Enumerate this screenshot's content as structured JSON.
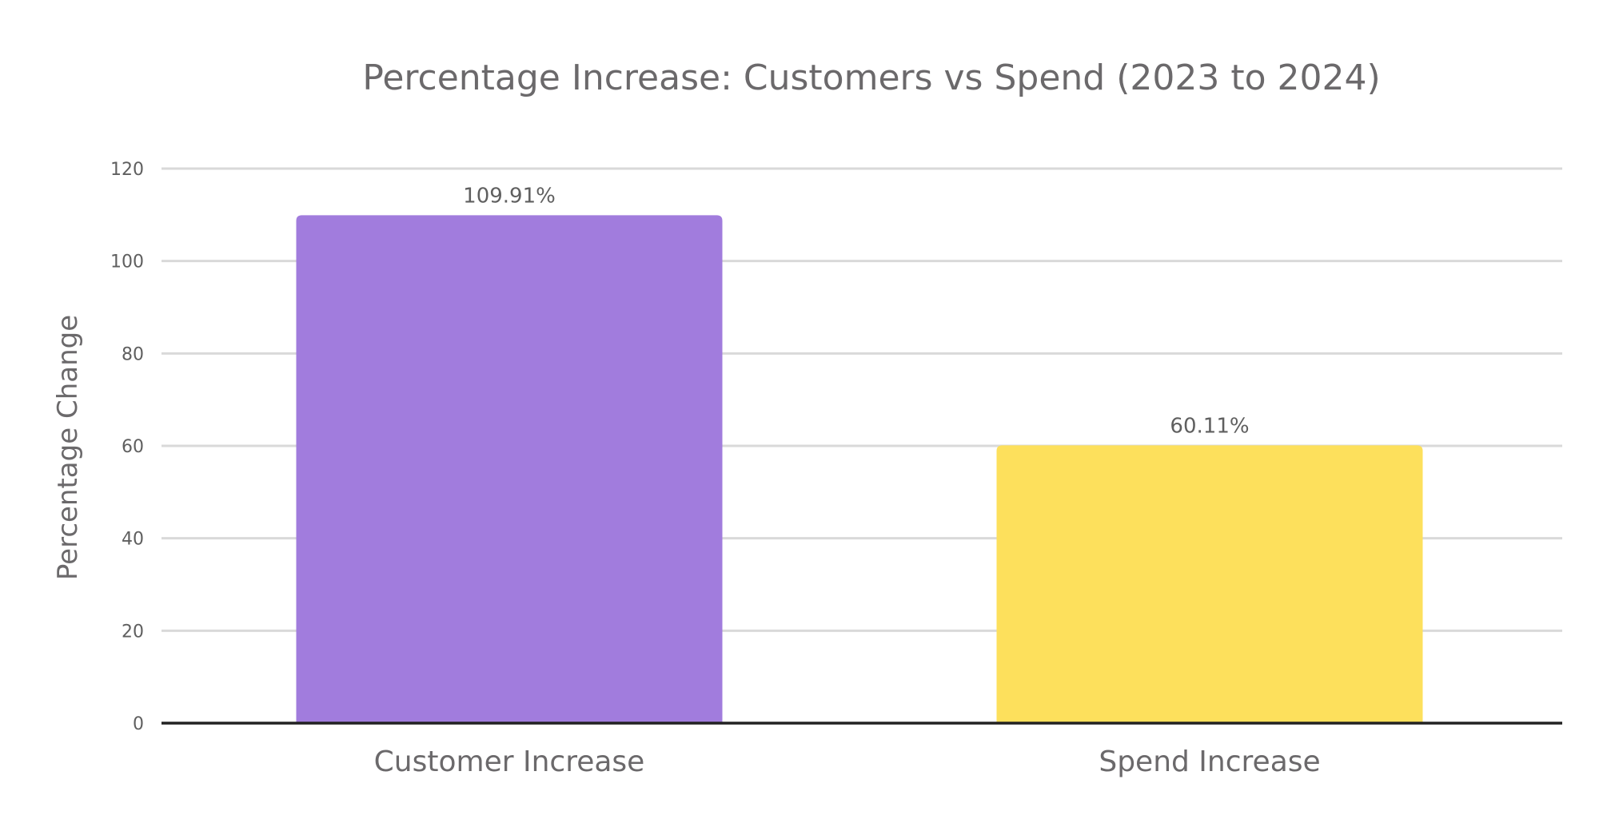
{
  "chart_data": {
    "type": "bar",
    "title": "Percentage Increase: Customers vs Spend (2023 to 2024)",
    "xlabel": "",
    "ylabel": "Percentage Change",
    "categories": [
      "Customer Increase",
      "Spend Increase"
    ],
    "values": [
      109.91,
      60.11
    ],
    "data_labels": [
      "109.91%",
      "60.11%"
    ],
    "colors": [
      "#a17cdd",
      "#fde05c"
    ],
    "ylim": [
      0,
      120
    ],
    "y_ticks": [
      0,
      20,
      40,
      60,
      80,
      100,
      120
    ],
    "grid": true,
    "legend": "none"
  }
}
